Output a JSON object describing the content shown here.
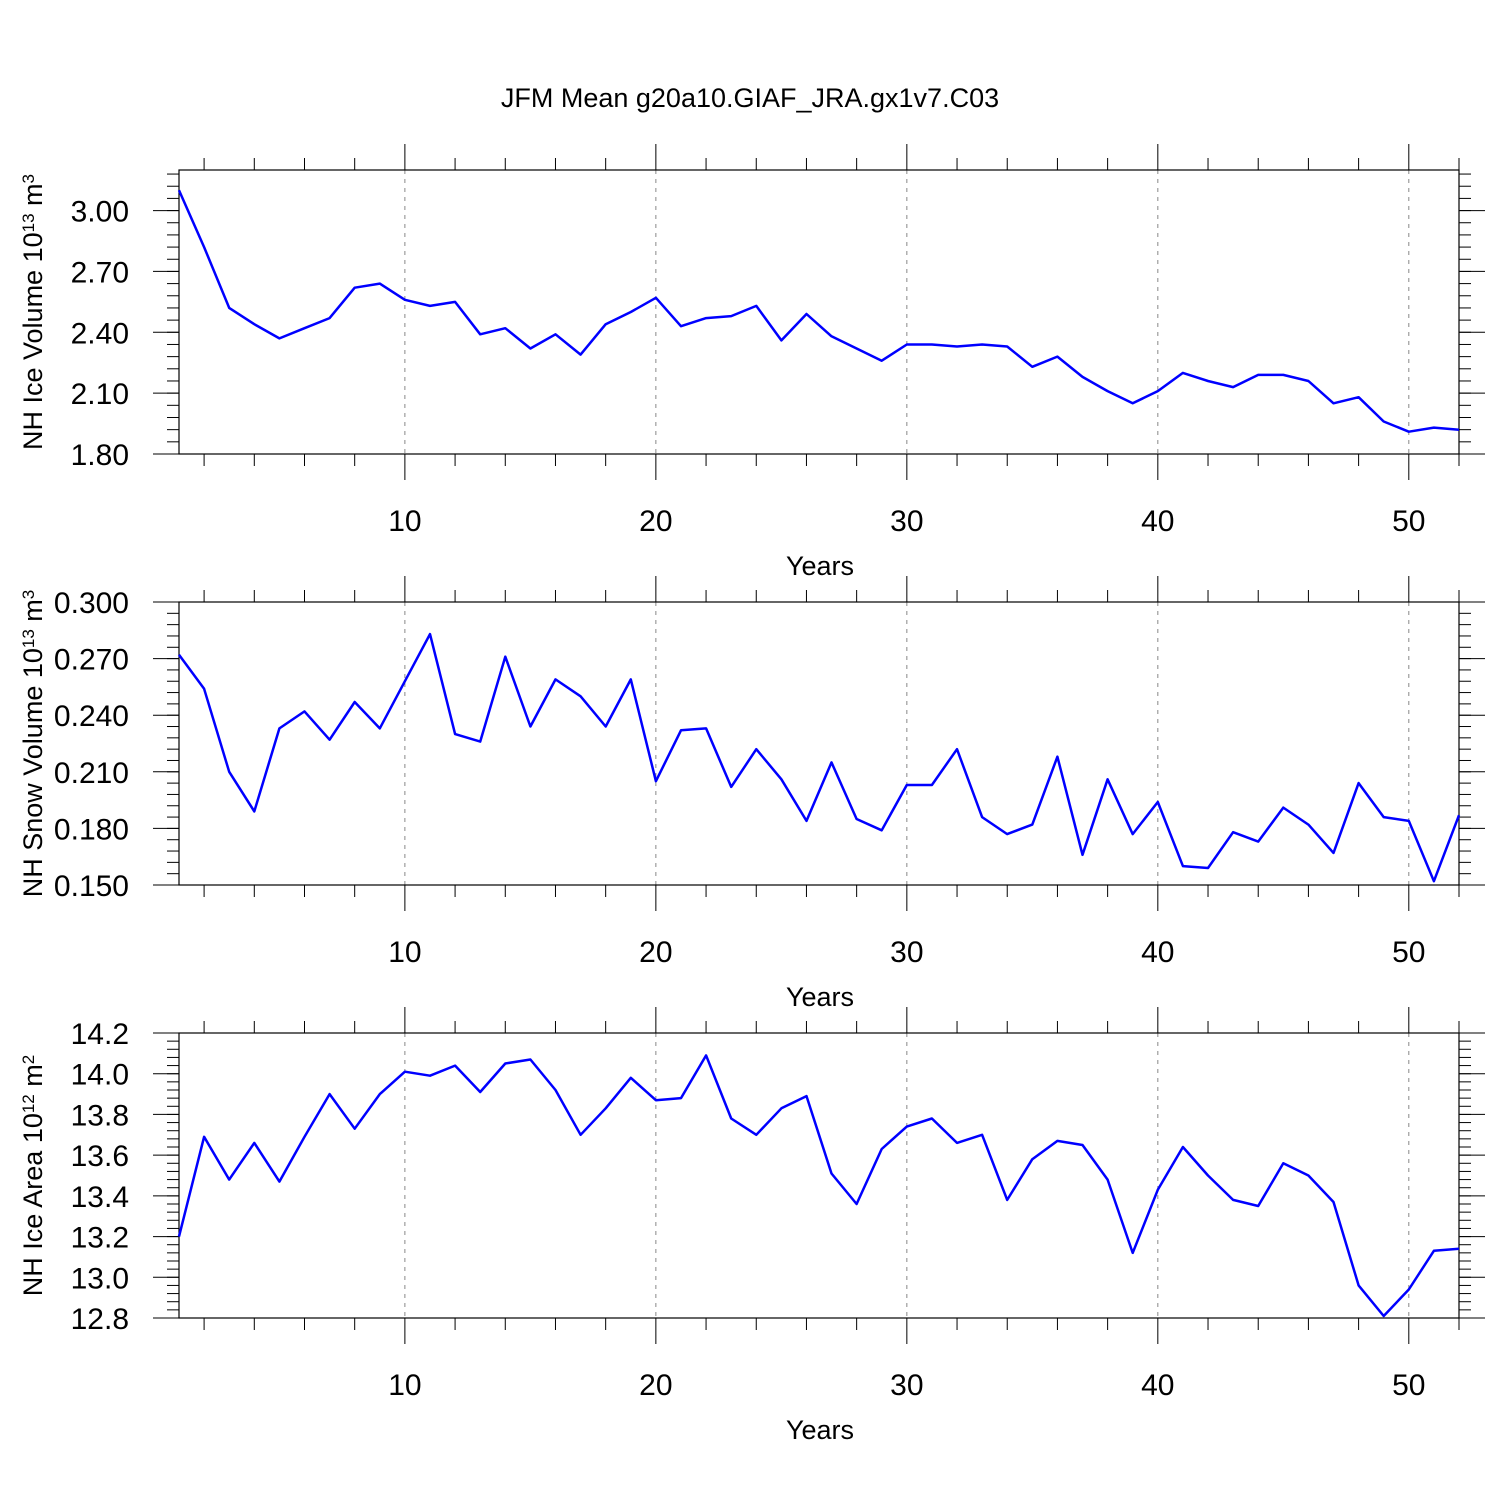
{
  "figure": {
    "title": "JFM Mean g20a10.GIAF_JRA.gx1v7.C03"
  },
  "chart_data": [
    {
      "type": "line",
      "ylabel_main": "NH Ice Volume 10",
      "ylabel_exp": "13",
      "ylabel_unit": " m",
      "ylabel_unit_exp": "3",
      "xlabel": "Years",
      "xlim": [
        1,
        52
      ],
      "ylim": [
        1.8,
        3.2
      ],
      "yticks": [
        "1.80",
        "2.10",
        "2.40",
        "2.70",
        "3.00"
      ],
      "xticks": [
        "10",
        "20",
        "30",
        "40",
        "50"
      ],
      "line_color": "#0000ff",
      "series": [
        {
          "name": "NH Ice Volume",
          "x": [
            1,
            2,
            3,
            4,
            5,
            6,
            7,
            8,
            9,
            10,
            11,
            12,
            13,
            14,
            15,
            16,
            17,
            18,
            19,
            20,
            21,
            22,
            23,
            24,
            25,
            26,
            27,
            28,
            29,
            30,
            31,
            32,
            33,
            34,
            35,
            36,
            37,
            38,
            39,
            40,
            41,
            42,
            43,
            44,
            45,
            46,
            47,
            48,
            49,
            50,
            51,
            52
          ],
          "values": [
            3.1,
            2.82,
            2.52,
            2.44,
            2.37,
            2.42,
            2.47,
            2.62,
            2.64,
            2.56,
            2.53,
            2.55,
            2.39,
            2.42,
            2.32,
            2.39,
            2.29,
            2.44,
            2.5,
            2.57,
            2.43,
            2.47,
            2.48,
            2.53,
            2.36,
            2.49,
            2.38,
            2.32,
            2.26,
            2.34,
            2.34,
            2.33,
            2.34,
            2.33,
            2.23,
            2.28,
            2.18,
            2.11,
            2.05,
            2.11,
            2.2,
            2.16,
            2.13,
            2.19,
            2.19,
            2.16,
            2.05,
            2.08,
            1.96,
            1.91,
            1.93,
            1.92
          ]
        }
      ]
    },
    {
      "type": "line",
      "ylabel_main": "NH Snow Volume 10",
      "ylabel_exp": "13",
      "ylabel_unit": " m",
      "ylabel_unit_exp": "3",
      "xlabel": "Years",
      "xlim": [
        1,
        52
      ],
      "ylim": [
        0.15,
        0.3
      ],
      "yticks": [
        "0.150",
        "0.180",
        "0.210",
        "0.240",
        "0.270",
        "0.300"
      ],
      "xticks": [
        "10",
        "20",
        "30",
        "40",
        "50"
      ],
      "line_color": "#0000ff",
      "series": [
        {
          "name": "NH Snow Volume",
          "x": [
            1,
            2,
            3,
            4,
            5,
            6,
            7,
            8,
            9,
            10,
            11,
            12,
            13,
            14,
            15,
            16,
            17,
            18,
            19,
            20,
            21,
            22,
            23,
            24,
            25,
            26,
            27,
            28,
            29,
            30,
            31,
            32,
            33,
            34,
            35,
            36,
            37,
            38,
            39,
            40,
            41,
            42,
            43,
            44,
            45,
            46,
            47,
            48,
            49,
            50,
            51,
            52
          ],
          "values": [
            0.272,
            0.254,
            0.21,
            0.189,
            0.233,
            0.242,
            0.227,
            0.247,
            0.233,
            0.258,
            0.283,
            0.23,
            0.226,
            0.271,
            0.234,
            0.259,
            0.25,
            0.234,
            0.259,
            0.205,
            0.232,
            0.233,
            0.202,
            0.222,
            0.206,
            0.184,
            0.215,
            0.185,
            0.179,
            0.203,
            0.203,
            0.222,
            0.186,
            0.177,
            0.182,
            0.218,
            0.166,
            0.206,
            0.177,
            0.194,
            0.16,
            0.159,
            0.178,
            0.173,
            0.191,
            0.182,
            0.167,
            0.204,
            0.186,
            0.184,
            0.152,
            0.187
          ]
        }
      ]
    },
    {
      "type": "line",
      "ylabel_main": "NH Ice Area 10",
      "ylabel_exp": "12",
      "ylabel_unit": " m",
      "ylabel_unit_exp": "2",
      "xlabel": "Years",
      "xlim": [
        1,
        52
      ],
      "ylim": [
        12.8,
        14.2
      ],
      "yticks": [
        "12.8",
        "13.0",
        "13.2",
        "13.4",
        "13.6",
        "13.8",
        "14.0",
        "14.2"
      ],
      "xticks": [
        "10",
        "20",
        "30",
        "40",
        "50"
      ],
      "line_color": "#0000ff",
      "series": [
        {
          "name": "NH Ice Area",
          "x": [
            1,
            2,
            3,
            4,
            5,
            6,
            7,
            8,
            9,
            10,
            11,
            12,
            13,
            14,
            15,
            16,
            17,
            18,
            19,
            20,
            21,
            22,
            23,
            24,
            25,
            26,
            27,
            28,
            29,
            30,
            31,
            32,
            33,
            34,
            35,
            36,
            37,
            38,
            39,
            40,
            41,
            42,
            43,
            44,
            45,
            46,
            47,
            48,
            49,
            50,
            51,
            52
          ],
          "values": [
            13.2,
            13.69,
            13.48,
            13.66,
            13.47,
            13.69,
            13.9,
            13.73,
            13.9,
            14.01,
            13.99,
            14.04,
            13.91,
            14.05,
            14.07,
            13.92,
            13.7,
            13.83,
            13.98,
            13.87,
            13.88,
            14.09,
            13.78,
            13.7,
            13.83,
            13.89,
            13.51,
            13.36,
            13.63,
            13.74,
            13.78,
            13.66,
            13.7,
            13.38,
            13.58,
            13.67,
            13.65,
            13.48,
            13.12,
            13.43,
            13.64,
            13.5,
            13.38,
            13.35,
            13.56,
            13.5,
            13.37,
            12.96,
            12.81,
            12.94,
            13.13,
            13.14
          ]
        }
      ]
    }
  ]
}
